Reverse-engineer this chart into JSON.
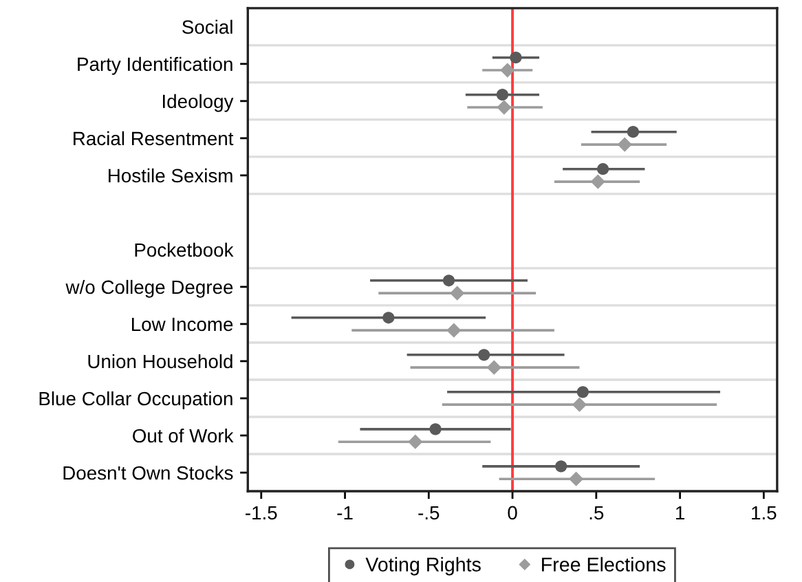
{
  "chart_data": {
    "type": "scatter",
    "orientation": "horizontal",
    "categories": [
      "Social",
      "Party Identification",
      "Ideology",
      "Racial Resentment",
      "Hostile Sexism",
      null,
      "Pocketbook",
      "w/o College Degree",
      "Low Income",
      "Union Household",
      "Blue Collar Occupation",
      "Out of Work",
      "Doesn't Own Stocks"
    ],
    "series": [
      {
        "name": "Voting Rights",
        "color": "#5a5a5a",
        "marker": "circle",
        "values": [
          null,
          0.02,
          -0.06,
          0.72,
          0.54,
          null,
          null,
          -0.38,
          -0.74,
          -0.17,
          0.42,
          -0.46,
          0.29
        ],
        "errors": [
          null,
          [
            -0.12,
            0.16
          ],
          [
            -0.28,
            0.16
          ],
          [
            0.47,
            0.98
          ],
          [
            0.3,
            0.79
          ],
          null,
          null,
          [
            -0.85,
            0.09
          ],
          [
            -1.32,
            -0.16
          ],
          [
            -0.63,
            0.31
          ],
          [
            -0.39,
            1.24
          ],
          [
            -0.91,
            -0.01
          ],
          [
            -0.18,
            0.76
          ]
        ]
      },
      {
        "name": "Free Elections",
        "color": "#9c9c9c",
        "marker": "diamond",
        "values": [
          null,
          -0.03,
          -0.05,
          0.67,
          0.51,
          null,
          null,
          -0.33,
          -0.35,
          -0.11,
          0.4,
          -0.58,
          0.38
        ],
        "errors": [
          null,
          [
            -0.18,
            0.12
          ],
          [
            -0.27,
            0.18
          ],
          [
            0.41,
            0.92
          ],
          [
            0.25,
            0.76
          ],
          null,
          null,
          [
            -0.8,
            0.14
          ],
          [
            -0.96,
            0.25
          ],
          [
            -0.61,
            0.4
          ],
          [
            -0.42,
            1.22
          ],
          [
            -1.04,
            -0.13
          ],
          [
            -0.08,
            0.85
          ]
        ]
      }
    ],
    "xlim": [
      -1.58,
      1.58
    ],
    "xticks": [
      -1.5,
      -1,
      {
        "value": -0.5,
        "label": "-.5"
      },
      0,
      {
        "value": 0.5,
        "label": ".5"
      },
      1,
      1.5
    ],
    "ref_lines": [
      {
        "axis": "x",
        "value": 0,
        "color": "#ff3b3b"
      }
    ],
    "grid": "y",
    "legend": "bottom"
  }
}
